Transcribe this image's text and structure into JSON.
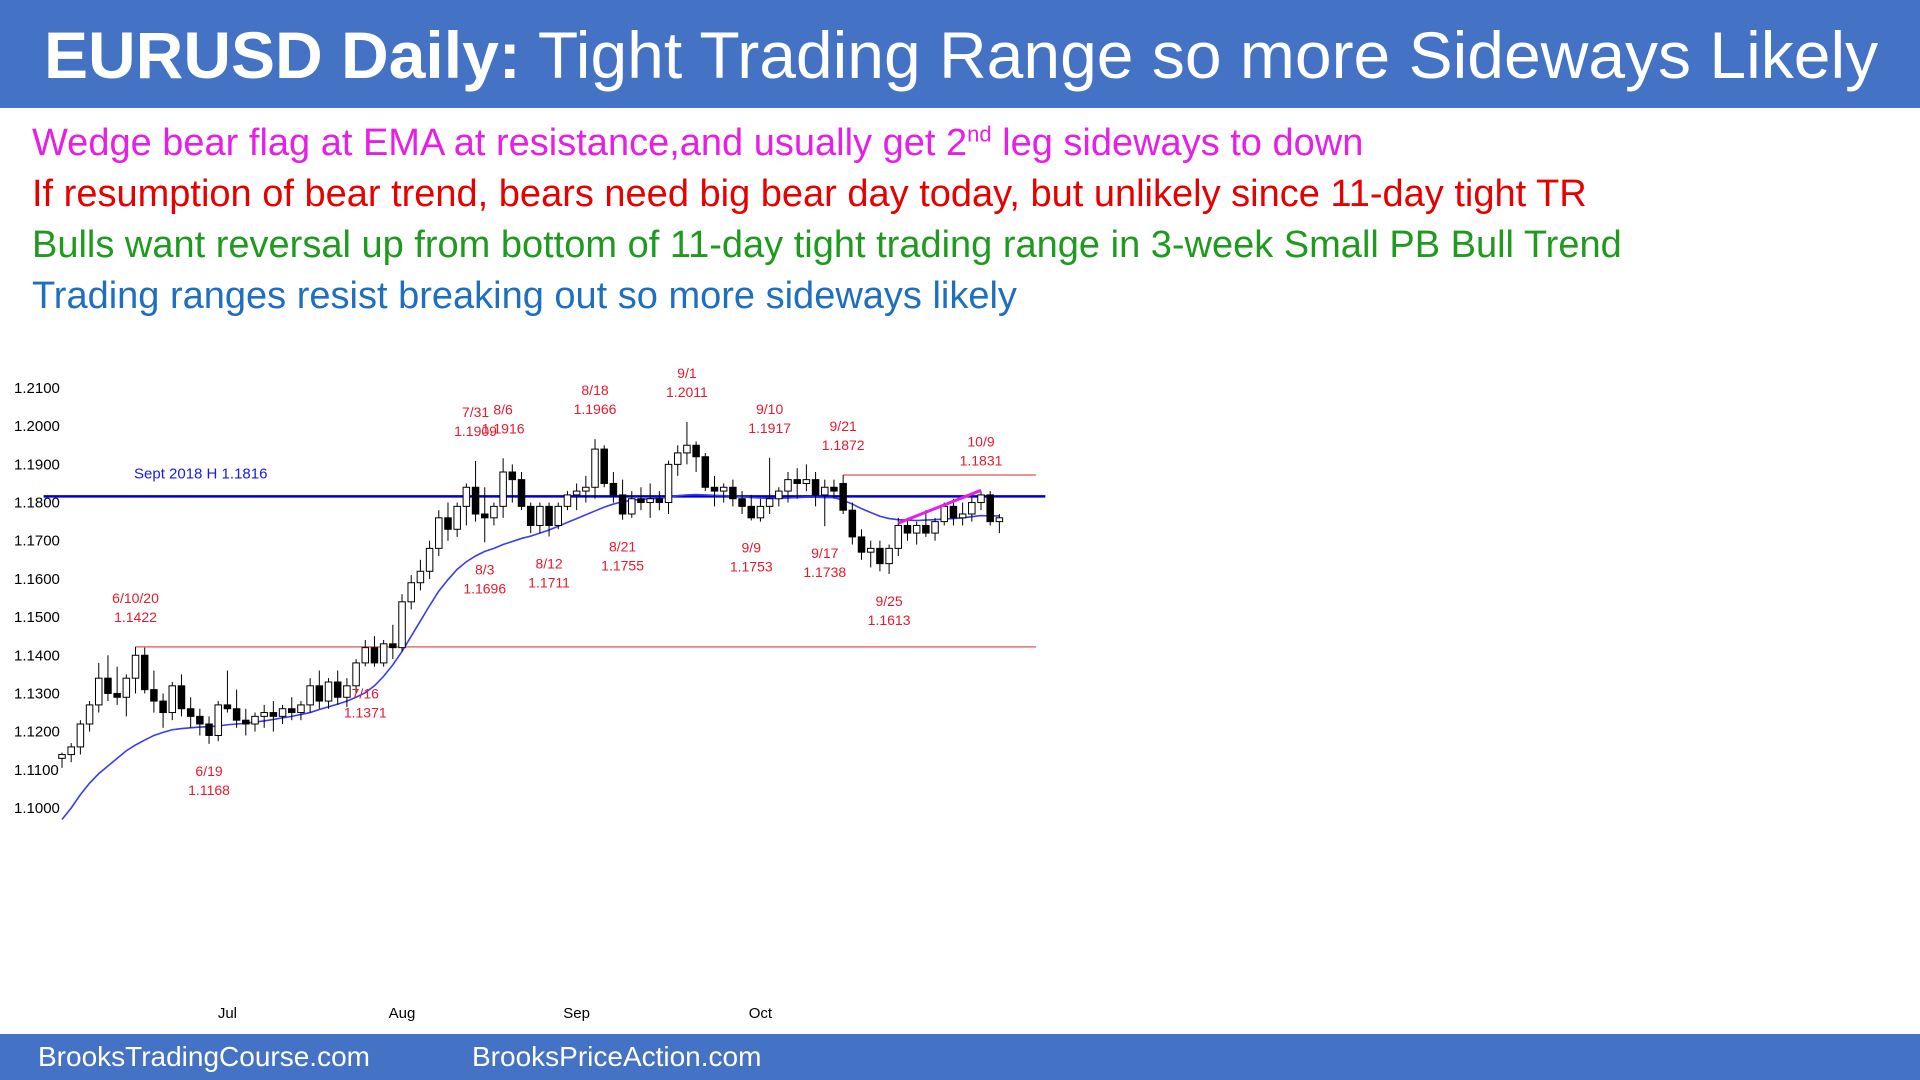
{
  "header": {
    "title_bold": "EURUSD Daily:",
    "title_rest": "Tight Trading Range so more Sideways Likely",
    "background": "#4472c4"
  },
  "notes": [
    {
      "text": "Wedge bear flag at EMA at resistance,and usually get 2",
      "sup": "nd",
      "after": " leg sideways to down",
      "color": "#e61ee6"
    },
    {
      "text": "If resumption of bear trend, bears need big bear day today, but unlikely since 11-day tight TR",
      "color": "#e60000"
    },
    {
      "text": "Bulls want reversal up from bottom of 11-day tight trading range in 3-week Small PB Bull Trend",
      "color": "#1e9a1e"
    },
    {
      "text": "Trading ranges resist breaking out so more sideways likely",
      "color": "#1e6fc0"
    }
  ],
  "footer": {
    "left": "BrooksTradingCourse.com",
    "right": "BrooksPriceAction.com"
  },
  "chart_data": {
    "type": "candlestick",
    "ylim": [
      1.095,
      1.21
    ],
    "ytick_labels": [
      "1.2100",
      "1.2000",
      "1.1900",
      "1.1800",
      "1.1700",
      "1.1600",
      "1.1500",
      "1.1400",
      "1.1300",
      "1.1200",
      "1.1100",
      "1.1000"
    ],
    "xtick_labels": [
      {
        "label": "Jul",
        "index": 18
      },
      {
        "label": "Aug",
        "index": 37
      },
      {
        "label": "Sep",
        "index": 56
      },
      {
        "label": "Oct",
        "index": 76
      }
    ],
    "candles": [
      [
        1.113,
        1.1145,
        1.1105,
        1.114
      ],
      [
        1.114,
        1.117,
        1.112,
        1.116
      ],
      [
        1.116,
        1.123,
        1.114,
        1.122
      ],
      [
        1.122,
        1.128,
        1.12,
        1.127
      ],
      [
        1.127,
        1.138,
        1.125,
        1.134
      ],
      [
        1.134,
        1.14,
        1.128,
        1.13
      ],
      [
        1.13,
        1.137,
        1.127,
        1.129
      ],
      [
        1.129,
        1.135,
        1.124,
        1.134
      ],
      [
        1.134,
        1.1422,
        1.13,
        1.14
      ],
      [
        1.14,
        1.142,
        1.13,
        1.131
      ],
      [
        1.131,
        1.136,
        1.125,
        1.128
      ],
      [
        1.128,
        1.13,
        1.121,
        1.125
      ],
      [
        1.125,
        1.133,
        1.123,
        1.132
      ],
      [
        1.132,
        1.135,
        1.124,
        1.126
      ],
      [
        1.126,
        1.129,
        1.121,
        1.124
      ],
      [
        1.124,
        1.126,
        1.119,
        1.122
      ],
      [
        1.122,
        1.124,
        1.1168,
        1.119
      ],
      [
        1.119,
        1.128,
        1.1175,
        1.127
      ],
      [
        1.127,
        1.136,
        1.125,
        1.126
      ],
      [
        1.126,
        1.131,
        1.121,
        1.123
      ],
      [
        1.123,
        1.126,
        1.119,
        1.122
      ],
      [
        1.122,
        1.125,
        1.12,
        1.124
      ],
      [
        1.124,
        1.127,
        1.121,
        1.125
      ],
      [
        1.125,
        1.128,
        1.12,
        1.124
      ],
      [
        1.124,
        1.127,
        1.122,
        1.126
      ],
      [
        1.126,
        1.129,
        1.123,
        1.125
      ],
      [
        1.125,
        1.128,
        1.123,
        1.127
      ],
      [
        1.127,
        1.134,
        1.125,
        1.132
      ],
      [
        1.132,
        1.136,
        1.126,
        1.128
      ],
      [
        1.128,
        1.134,
        1.126,
        1.133
      ],
      [
        1.133,
        1.136,
        1.127,
        1.129
      ],
      [
        1.129,
        1.134,
        1.1265,
        1.132
      ],
      [
        1.132,
        1.139,
        1.13,
        1.138
      ],
      [
        1.138,
        1.144,
        1.1371,
        1.142
      ],
      [
        1.142,
        1.145,
        1.137,
        1.138
      ],
      [
        1.138,
        1.144,
        1.137,
        1.143
      ],
      [
        1.143,
        1.148,
        1.139,
        1.142
      ],
      [
        1.142,
        1.156,
        1.141,
        1.154
      ],
      [
        1.154,
        1.161,
        1.152,
        1.159
      ],
      [
        1.159,
        1.165,
        1.157,
        1.162
      ],
      [
        1.162,
        1.17,
        1.16,
        1.168
      ],
      [
        1.168,
        1.178,
        1.166,
        1.176
      ],
      [
        1.176,
        1.18,
        1.17,
        1.173
      ],
      [
        1.173,
        1.18,
        1.171,
        1.179
      ],
      [
        1.179,
        1.185,
        1.174,
        1.184
      ],
      [
        1.184,
        1.1909,
        1.175,
        1.177
      ],
      [
        1.177,
        1.184,
        1.1696,
        1.176
      ],
      [
        1.176,
        1.18,
        1.174,
        1.179
      ],
      [
        1.179,
        1.1916,
        1.176,
        1.188
      ],
      [
        1.188,
        1.19,
        1.18,
        1.186
      ],
      [
        1.186,
        1.188,
        1.178,
        1.179
      ],
      [
        1.179,
        1.18,
        1.172,
        1.174
      ],
      [
        1.174,
        1.18,
        1.172,
        1.179
      ],
      [
        1.179,
        1.18,
        1.1711,
        1.174
      ],
      [
        1.174,
        1.18,
        1.173,
        1.179
      ],
      [
        1.179,
        1.183,
        1.178,
        1.182
      ],
      [
        1.182,
        1.185,
        1.178,
        1.183
      ],
      [
        1.183,
        1.187,
        1.18,
        1.184
      ],
      [
        1.184,
        1.1966,
        1.181,
        1.194
      ],
      [
        1.194,
        1.195,
        1.184,
        1.185
      ],
      [
        1.185,
        1.188,
        1.18,
        1.182
      ],
      [
        1.182,
        1.186,
        1.1755,
        1.177
      ],
      [
        1.177,
        1.183,
        1.176,
        1.181
      ],
      [
        1.181,
        1.184,
        1.178,
        1.18
      ],
      [
        1.18,
        1.185,
        1.176,
        1.181
      ],
      [
        1.181,
        1.183,
        1.178,
        1.18
      ],
      [
        1.18,
        1.191,
        1.177,
        1.19
      ],
      [
        1.19,
        1.195,
        1.187,
        1.193
      ],
      [
        1.193,
        1.2011,
        1.19,
        1.195
      ],
      [
        1.195,
        1.196,
        1.188,
        1.192
      ],
      [
        1.192,
        1.193,
        1.183,
        1.184
      ],
      [
        1.184,
        1.187,
        1.179,
        1.183
      ],
      [
        1.183,
        1.185,
        1.18,
        1.184
      ],
      [
        1.184,
        1.186,
        1.179,
        1.181
      ],
      [
        1.181,
        1.183,
        1.177,
        1.179
      ],
      [
        1.179,
        1.182,
        1.1753,
        1.176
      ],
      [
        1.176,
        1.181,
        1.175,
        1.179
      ],
      [
        1.179,
        1.1917,
        1.177,
        1.181
      ],
      [
        1.181,
        1.184,
        1.179,
        1.183
      ],
      [
        1.183,
        1.188,
        1.18,
        1.186
      ],
      [
        1.186,
        1.189,
        1.181,
        1.185
      ],
      [
        1.185,
        1.19,
        1.183,
        1.186
      ],
      [
        1.186,
        1.188,
        1.179,
        1.182
      ],
      [
        1.182,
        1.186,
        1.1738,
        1.184
      ],
      [
        1.184,
        1.186,
        1.181,
        1.183
      ],
      [
        1.185,
        1.1872,
        1.177,
        1.178
      ],
      [
        1.178,
        1.18,
        1.169,
        1.171
      ],
      [
        1.171,
        1.173,
        1.165,
        1.167
      ],
      [
        1.167,
        1.17,
        1.163,
        1.168
      ],
      [
        1.168,
        1.17,
        1.162,
        1.164
      ],
      [
        1.164,
        1.169,
        1.1613,
        1.168
      ],
      [
        1.168,
        1.176,
        1.166,
        1.174
      ],
      [
        1.174,
        1.176,
        1.17,
        1.172
      ],
      [
        1.172,
        1.175,
        1.169,
        1.174
      ],
      [
        1.174,
        1.178,
        1.171,
        1.172
      ],
      [
        1.172,
        1.176,
        1.17,
        1.175
      ],
      [
        1.175,
        1.18,
        1.174,
        1.179
      ],
      [
        1.179,
        1.181,
        1.174,
        1.176
      ],
      [
        1.176,
        1.18,
        1.174,
        1.177
      ],
      [
        1.177,
        1.182,
        1.175,
        1.18
      ],
      [
        1.18,
        1.1831,
        1.178,
        1.182
      ],
      [
        1.182,
        1.183,
        1.174,
        1.175
      ],
      [
        1.175,
        1.177,
        1.172,
        1.176
      ]
    ],
    "ema": [
      1.097,
      1.1,
      1.1035,
      1.1065,
      1.109,
      1.111,
      1.113,
      1.115,
      1.1165,
      1.1178,
      1.119,
      1.1198,
      1.1205,
      1.1208,
      1.121,
      1.1212,
      1.1213,
      1.1215,
      1.1218,
      1.122,
      1.1222,
      1.1225,
      1.1228,
      1.1232,
      1.1236,
      1.124,
      1.1245,
      1.125,
      1.1258,
      1.1265,
      1.1272,
      1.128,
      1.129,
      1.1302,
      1.132,
      1.1345,
      1.1375,
      1.141,
      1.145,
      1.149,
      1.153,
      1.1568,
      1.1598,
      1.1625,
      1.1645,
      1.166,
      1.1672,
      1.168,
      1.169,
      1.1698,
      1.1706,
      1.1712,
      1.172,
      1.1728,
      1.1738,
      1.1748,
      1.1758,
      1.1768,
      1.1778,
      1.1788,
      1.1796,
      1.1802,
      1.1806,
      1.1808,
      1.181,
      1.1811,
      1.1814,
      1.1818,
      1.182,
      1.1821,
      1.182,
      1.1819,
      1.1818,
      1.1817,
      1.1815,
      1.1813,
      1.1812,
      1.1811,
      1.1811,
      1.1812,
      1.1813,
      1.1814,
      1.1814,
      1.1813,
      1.1813,
      1.1806,
      1.1796,
      1.1784,
      1.1774,
      1.1764,
      1.1758,
      1.1755,
      1.1754,
      1.1753,
      1.1754,
      1.1755,
      1.1757,
      1.1758,
      1.176,
      1.1763,
      1.1766,
      1.1765,
      1.1765
    ],
    "hlines": [
      {
        "value": 1.1816,
        "color": "#0000cc",
        "label": "Sept 2018 H 1.1816",
        "from_index": -2,
        "to_index": 107
      },
      {
        "value": 1.1872,
        "color": "#e87070",
        "from_index": 85,
        "to_index": 106
      },
      {
        "value": 1.1422,
        "color": "#e87070",
        "from_index": 8,
        "to_index": 106
      }
    ],
    "trendline": {
      "color": "#e61ee6",
      "from": [
        91,
        1.1746
      ],
      "to": [
        100,
        1.1832
      ]
    },
    "annotations": [
      {
        "lines": [
          "6/10/20",
          "1.1422"
        ],
        "index": 8,
        "value": 1.1422,
        "position": "above"
      },
      {
        "lines": [
          "6/19",
          "1.1168"
        ],
        "index": 16,
        "value": 1.1168,
        "position": "below"
      },
      {
        "lines": [
          "7/16",
          "1.1371"
        ],
        "index": 33,
        "value": 1.1371,
        "position": "below"
      },
      {
        "lines": [
          "7/31",
          "1.1909"
        ],
        "index": 45,
        "value": 1.1909,
        "position": "above"
      },
      {
        "lines": [
          "8/3",
          "1.1696"
        ],
        "index": 46,
        "value": 1.1696,
        "position": "below"
      },
      {
        "lines": [
          "8/6",
          "1.1916"
        ],
        "index": 48,
        "value": 1.1916,
        "position": "above"
      },
      {
        "lines": [
          "8/12",
          "1.1711"
        ],
        "index": 53,
        "value": 1.1711,
        "position": "below"
      },
      {
        "lines": [
          "8/18",
          "1.1966"
        ],
        "index": 58,
        "value": 1.1966,
        "position": "above"
      },
      {
        "lines": [
          "8/21",
          "1.1755"
        ],
        "index": 61,
        "value": 1.1755,
        "position": "below"
      },
      {
        "lines": [
          "9/1",
          "1.2011"
        ],
        "index": 68,
        "value": 1.2011,
        "position": "above"
      },
      {
        "lines": [
          "9/9",
          "1.1753"
        ],
        "index": 75,
        "value": 1.1753,
        "position": "below"
      },
      {
        "lines": [
          "9/10",
          "1.1917"
        ],
        "index": 77,
        "value": 1.1917,
        "position": "above"
      },
      {
        "lines": [
          "9/17",
          "1.1738"
        ],
        "index": 83,
        "value": 1.1738,
        "position": "below"
      },
      {
        "lines": [
          "9/21",
          "1.1872"
        ],
        "index": 85,
        "value": 1.1872,
        "position": "above"
      },
      {
        "lines": [
          "9/25",
          "1.1613"
        ],
        "index": 90,
        "value": 1.1613,
        "position": "below"
      },
      {
        "lines": [
          "10/9",
          "1.1831"
        ],
        "index": 100,
        "value": 1.1831,
        "position": "above"
      }
    ],
    "colors": {
      "bull_body": "#ffffff",
      "bear_body": "#000000",
      "wick": "#000000",
      "ema": "#3b3bf0",
      "annotation": "#e8192c"
    }
  }
}
